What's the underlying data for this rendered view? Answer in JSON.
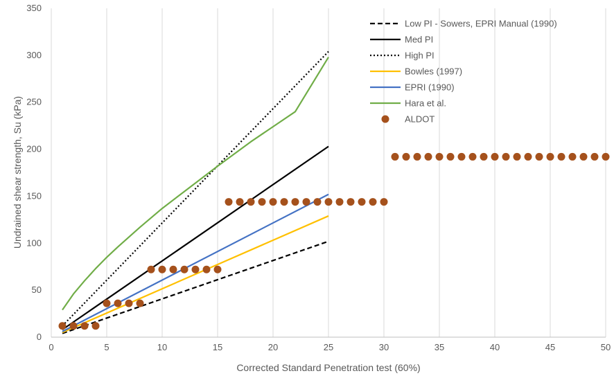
{
  "chart_data": {
    "type": "line",
    "xlabel": "Corrected Standard Penetration test (60%)",
    "ylabel": "Undrained shear strength, Su (kPa)",
    "xlim": [
      0,
      50
    ],
    "ylim": [
      0,
      350
    ],
    "xticks": [
      "0",
      "5",
      "10",
      "15",
      "20",
      "25",
      "30",
      "35",
      "40",
      "45",
      "50"
    ],
    "yticks": [
      "0",
      "50",
      "100",
      "150",
      "200",
      "250",
      "300",
      "350"
    ],
    "grid": "vertical",
    "legend_position": "top-right",
    "series": [
      {
        "name": "Low PI - Sowers, EPRI Manual (1990)",
        "style": "dashed",
        "color": "#000000",
        "x": [
          1,
          25
        ],
        "y": [
          4,
          102
        ]
      },
      {
        "name": "Med PI",
        "style": "solid",
        "color": "#000000",
        "x": [
          1,
          25
        ],
        "y": [
          8,
          203
        ]
      },
      {
        "name": "High PI",
        "style": "dotted",
        "color": "#000000",
        "x": [
          1,
          25
        ],
        "y": [
          12,
          304
        ]
      },
      {
        "name": "Bowles (1997)",
        "style": "solid",
        "color": "#FFC000",
        "x": [
          1,
          25
        ],
        "y": [
          5,
          129
        ]
      },
      {
        "name": "EPRI (1990)",
        "style": "solid",
        "color": "#4472C4",
        "x": [
          1,
          25
        ],
        "y": [
          6,
          152
        ]
      },
      {
        "name": "Hara et al.",
        "style": "solid",
        "color": "#70AD47",
        "x": [
          1,
          2,
          3,
          4,
          5,
          6,
          8,
          10,
          12,
          15,
          18,
          20,
          22,
          25
        ],
        "y": [
          29,
          46,
          60,
          73,
          85,
          96,
          117,
          137,
          155,
          182,
          208,
          224,
          240,
          298
        ]
      },
      {
        "name": "ALDOT",
        "style": "markers",
        "color": "#A5511C",
        "x": [
          1,
          2,
          3,
          4,
          5,
          6,
          7,
          8,
          9,
          10,
          11,
          12,
          13,
          14,
          15,
          16,
          17,
          18,
          19,
          20,
          21,
          22,
          23,
          24,
          25,
          26,
          27,
          28,
          29,
          30,
          31,
          32,
          33,
          34,
          35,
          36,
          37,
          38,
          39,
          40,
          41,
          42,
          43,
          44,
          45,
          46,
          47,
          48,
          49,
          50
        ],
        "y": [
          12,
          12,
          12,
          12,
          36,
          36,
          36,
          36,
          72,
          72,
          72,
          72,
          72,
          72,
          72,
          144,
          144,
          144,
          144,
          144,
          144,
          144,
          144,
          144,
          144,
          144,
          144,
          144,
          144,
          144,
          192,
          192,
          192,
          192,
          192,
          192,
          192,
          192,
          192,
          192,
          192,
          192,
          192,
          192,
          192,
          192,
          192,
          192,
          192,
          192
        ]
      }
    ]
  },
  "colors": {
    "grid": "#D9D9D9",
    "axis": "#BFBFBF",
    "text": "#595959"
  }
}
